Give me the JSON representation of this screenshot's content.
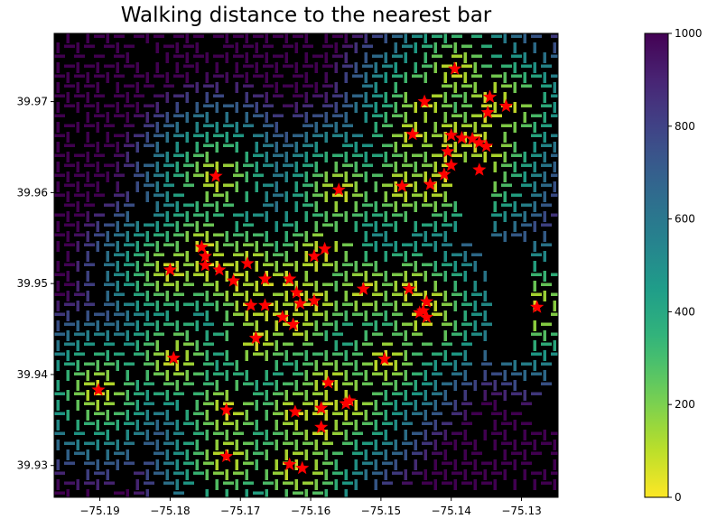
{
  "chart_data": {
    "type": "scatter",
    "title": "Walking distance to the nearest bar",
    "xlabel": "",
    "ylabel": "",
    "xlim": [
      -75.1965,
      -75.1248
    ],
    "ylim": [
      39.9265,
      39.9775
    ],
    "xticks": [
      -75.19,
      -75.18,
      -75.17,
      -75.16,
      -75.15,
      -75.14,
      -75.13
    ],
    "xtick_labels": [
      "−75.19",
      "−75.18",
      "−75.17",
      "−75.16",
      "−75.15",
      "−75.14",
      "−75.13"
    ],
    "yticks": [
      39.93,
      39.94,
      39.95,
      39.96,
      39.97
    ],
    "ytick_labels": [
      "39.93",
      "39.94",
      "39.95",
      "39.96",
      "39.97"
    ],
    "background_color": "#000000",
    "colormap": "viridis_r",
    "colorbar": {
      "range": [
        0,
        1000
      ],
      "ticks": [
        0,
        200,
        400,
        600,
        800,
        1000
      ],
      "tick_labels": [
        "0",
        "200",
        "400",
        "600",
        "800",
        "1000"
      ]
    },
    "series": [
      {
        "marker": "star",
        "color": "#ff0000",
        "points": [
          [
            -75.1395,
            39.9736
          ],
          [
            -75.1438,
            39.97
          ],
          [
            -75.1345,
            39.9705
          ],
          [
            -75.1322,
            39.9695
          ],
          [
            -75.1348,
            39.9688
          ],
          [
            -75.1455,
            39.9664
          ],
          [
            -75.14,
            39.9663
          ],
          [
            -75.1385,
            39.966
          ],
          [
            -75.137,
            39.9659
          ],
          [
            -75.136,
            39.9655
          ],
          [
            -75.135,
            39.9651
          ],
          [
            -75.1405,
            39.9645
          ],
          [
            -75.14,
            39.963
          ],
          [
            -75.136,
            39.9625
          ],
          [
            -75.141,
            39.962
          ],
          [
            -75.143,
            39.9609
          ],
          [
            -75.147,
            39.9607
          ],
          [
            -75.156,
            39.9603
          ],
          [
            -75.1735,
            39.9618
          ],
          [
            -75.1755,
            39.954
          ],
          [
            -75.175,
            39.953
          ],
          [
            -75.175,
            39.952
          ],
          [
            -75.18,
            39.9515
          ],
          [
            -75.173,
            39.9515
          ],
          [
            -75.169,
            39.9522
          ],
          [
            -75.158,
            39.9538
          ],
          [
            -75.1595,
            39.953
          ],
          [
            -75.171,
            39.9503
          ],
          [
            -75.1665,
            39.9505
          ],
          [
            -75.163,
            39.9505
          ],
          [
            -75.162,
            39.949
          ],
          [
            -75.1615,
            39.9478
          ],
          [
            -75.1595,
            39.9481
          ],
          [
            -75.1525,
            39.9494
          ],
          [
            -75.146,
            39.9494
          ],
          [
            -75.1435,
            39.948
          ],
          [
            -75.144,
            39.947
          ],
          [
            -75.1445,
            39.9468
          ],
          [
            -75.1435,
            39.9463
          ],
          [
            -75.1685,
            39.9476
          ],
          [
            -75.1665,
            39.9476
          ],
          [
            -75.164,
            39.9463
          ],
          [
            -75.1625,
            39.9455
          ],
          [
            -75.1278,
            39.9474
          ],
          [
            -75.1678,
            39.944
          ],
          [
            -75.1495,
            39.9417
          ],
          [
            -75.1795,
            39.9418
          ],
          [
            -75.1902,
            39.9383
          ],
          [
            -75.1575,
            39.9391
          ],
          [
            -75.1545,
            39.9371
          ],
          [
            -75.155,
            39.9368
          ],
          [
            -75.1585,
            39.9363
          ],
          [
            -75.1622,
            39.9359
          ],
          [
            -75.172,
            39.9361
          ],
          [
            -75.1585,
            39.9342
          ],
          [
            -75.172,
            39.931
          ],
          [
            -75.163,
            39.9301
          ],
          [
            -75.1612,
            39.9297
          ]
        ]
      }
    ]
  }
}
